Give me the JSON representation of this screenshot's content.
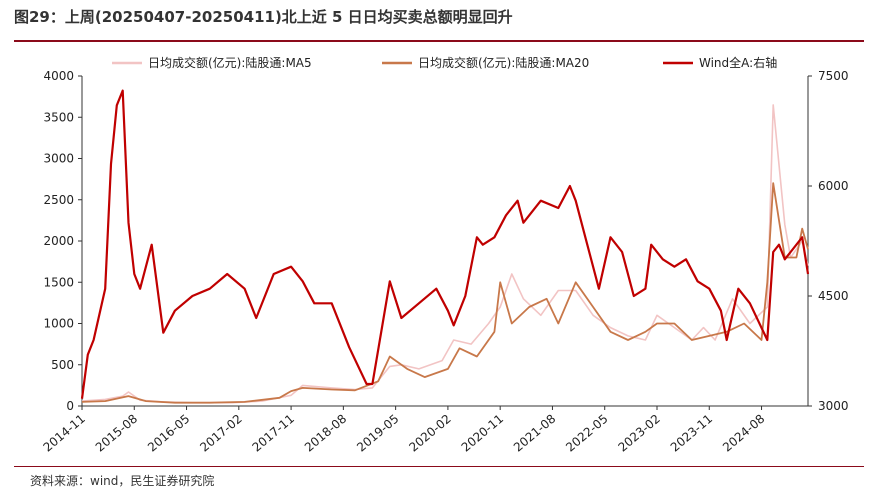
{
  "header": {
    "title": "图29：上周(20250407-20250411)北上近 5 日日均买卖总额明显回升"
  },
  "footer": {
    "source": "资料来源：wind，民生证券研究院"
  },
  "colors": {
    "ma5": "#f2c4c4",
    "ma20": "#c8784a",
    "wind": "#c00000",
    "title_rule": "#8b0a1a"
  },
  "chart_data": {
    "type": "line",
    "title": "图29：上周(20250407-20250411)北上近 5 日日均买卖总额明显回升",
    "xlabel": "",
    "ylabel": "",
    "y_left_lim": [
      0,
      4000
    ],
    "y_right_lim": [
      3000,
      7500
    ],
    "y_left_ticks": [
      "0",
      "500",
      "1000",
      "1500",
      "2000",
      "2500",
      "3000",
      "3500",
      "4000"
    ],
    "y_right_ticks": [
      "3000",
      "4500",
      "6000",
      "7500"
    ],
    "x_ticks": [
      "2014-11",
      "2015-08",
      "2016-05",
      "2017-02",
      "2017-11",
      "2018-08",
      "2019-05",
      "2020-02",
      "2020-11",
      "2021-08",
      "2022-05",
      "2023-02",
      "2023-11",
      "2024-08"
    ],
    "x_range": [
      "2014-11",
      "2025-04"
    ],
    "legend_position": "top",
    "series": [
      {
        "name": "日均成交额(亿元):陆股通:MA5",
        "axis": "left",
        "x": [
          "2014-11",
          "2015-03",
          "2015-06",
          "2015-07",
          "2015-09",
          "2016-01",
          "2016-06",
          "2017-01",
          "2017-06",
          "2017-11",
          "2018-01",
          "2018-06",
          "2018-10",
          "2019-01",
          "2019-04",
          "2019-06",
          "2019-09",
          "2020-01",
          "2020-03",
          "2020-06",
          "2020-09",
          "2020-11",
          "2021-01",
          "2021-03",
          "2021-06",
          "2021-09",
          "2021-12",
          "2022-03",
          "2022-06",
          "2022-09",
          "2022-12",
          "2023-02",
          "2023-05",
          "2023-08",
          "2023-10",
          "2023-12",
          "2024-03",
          "2024-06",
          "2024-09",
          "2024-10",
          "2024-12",
          "2025-01",
          "2025-03",
          "2025-04"
        ],
        "values": [
          60,
          80,
          120,
          170,
          70,
          50,
          40,
          40,
          60,
          130,
          250,
          220,
          200,
          220,
          480,
          500,
          450,
          550,
          800,
          750,
          1000,
          1200,
          1600,
          1300,
          1100,
          1400,
          1400,
          1100,
          950,
          850,
          800,
          1100,
          950,
          800,
          950,
          800,
          1300,
          1000,
          1200,
          3650,
          2200,
          1800,
          2000,
          1700
        ]
      },
      {
        "name": "日均成交额(亿元):陆股通:MA20",
        "axis": "left",
        "x": [
          "2014-11",
          "2015-03",
          "2015-07",
          "2015-10",
          "2016-03",
          "2016-09",
          "2017-03",
          "2017-09",
          "2017-11",
          "2018-01",
          "2018-06",
          "2018-10",
          "2019-02",
          "2019-04",
          "2019-07",
          "2019-10",
          "2020-02",
          "2020-04",
          "2020-07",
          "2020-10",
          "2020-11",
          "2021-01",
          "2021-04",
          "2021-07",
          "2021-09",
          "2021-12",
          "2022-03",
          "2022-06",
          "2022-09",
          "2022-12",
          "2023-02",
          "2023-05",
          "2023-08",
          "2023-11",
          "2024-02",
          "2024-05",
          "2024-08",
          "2024-09",
          "2024-10",
          "2024-12",
          "2025-02",
          "2025-03",
          "2025-04"
        ],
        "values": [
          50,
          60,
          120,
          60,
          40,
          40,
          50,
          100,
          180,
          220,
          200,
          190,
          300,
          600,
          450,
          350,
          450,
          700,
          600,
          900,
          1500,
          1000,
          1200,
          1300,
          1000,
          1500,
          1200,
          900,
          800,
          900,
          1000,
          1000,
          800,
          850,
          900,
          1000,
          800,
          1500,
          2700,
          1800,
          1800,
          2150,
          1900
        ]
      },
      {
        "name": "Wind全A:右轴",
        "axis": "right",
        "x": [
          "2014-11",
          "2014-12",
          "2015-01",
          "2015-03",
          "2015-04",
          "2015-05",
          "2015-06",
          "2015-07",
          "2015-08",
          "2015-09",
          "2015-11",
          "2016-01",
          "2016-03",
          "2016-06",
          "2016-09",
          "2016-12",
          "2017-03",
          "2017-05",
          "2017-08",
          "2017-11",
          "2018-01",
          "2018-03",
          "2018-06",
          "2018-09",
          "2018-12",
          "2019-01",
          "2019-04",
          "2019-06",
          "2019-09",
          "2019-12",
          "2020-02",
          "2020-03",
          "2020-05",
          "2020-07",
          "2020-08",
          "2020-10",
          "2020-12",
          "2021-02",
          "2021-03",
          "2021-06",
          "2021-09",
          "2021-11",
          "2021-12",
          "2022-01",
          "2022-04",
          "2022-06",
          "2022-08",
          "2022-10",
          "2022-12",
          "2023-01",
          "2023-03",
          "2023-05",
          "2023-07",
          "2023-09",
          "2023-11",
          "2024-01",
          "2024-02",
          "2024-04",
          "2024-06",
          "2024-09",
          "2024-10",
          "2024-11",
          "2024-12",
          "2025-01",
          "2025-03",
          "2025-04"
        ],
        "values": [
          3100,
          3700,
          3900,
          4600,
          6300,
          7100,
          7300,
          5500,
          4800,
          4600,
          5200,
          4000,
          4300,
          4500,
          4600,
          4800,
          4600,
          4200,
          4800,
          4900,
          4700,
          4400,
          4400,
          3800,
          3300,
          3300,
          4700,
          4200,
          4400,
          4600,
          4300,
          4100,
          4500,
          5300,
          5200,
          5300,
          5600,
          5800,
          5500,
          5800,
          5700,
          6000,
          5800,
          5500,
          4600,
          5300,
          5100,
          4500,
          4600,
          5200,
          5000,
          4900,
          5000,
          4700,
          4600,
          4300,
          3900,
          4600,
          4400,
          3900,
          5100,
          5200,
          5000,
          5100,
          5300,
          4800
        ]
      }
    ]
  }
}
